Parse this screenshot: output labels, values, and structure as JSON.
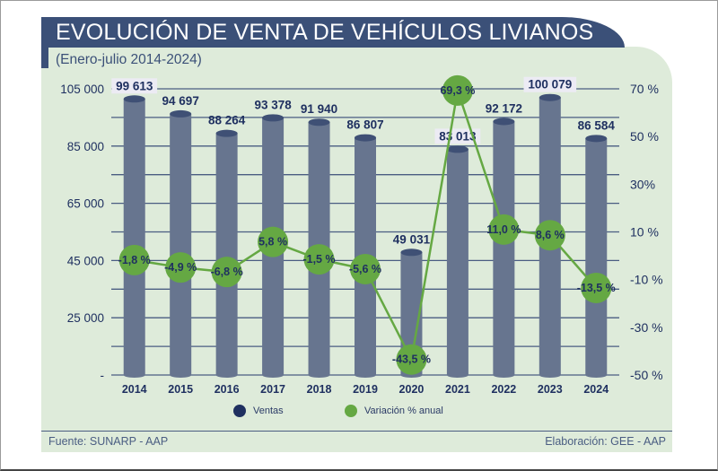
{
  "header": {
    "title": "EVOLUCIÓN DE VENTA DE VEHÍCULOS LIVIANOS",
    "subtitle": "(Enero-julio 2014-2024)"
  },
  "footer": {
    "source": "Fuente: SUNARP - AAP",
    "elaboration": "Elaboración: GEE - AAP"
  },
  "legend": [
    {
      "label": "Ventas",
      "color": "#1f3060"
    },
    {
      "label": "Variación % anual",
      "color": "#65a843"
    }
  ],
  "colors": {
    "bar": "#67758f",
    "bar_top": "#3f5075",
    "line": "#65a843",
    "grid": "#4a5d82",
    "text": "#1f3060",
    "panel": "#deebda",
    "header": "#3b5078"
  },
  "chart_data": {
    "type": "bar",
    "title": "EVOLUCIÓN DE VENTA DE VEHÍCULOS LIVIANOS",
    "subtitle": "(Enero-julio 2014-2024)",
    "categories": [
      "2014",
      "2015",
      "2016",
      "2017",
      "2018",
      "2019",
      "2020",
      "2021",
      "2022",
      "2023",
      "2024"
    ],
    "series": [
      {
        "name": "Ventas",
        "type": "bar",
        "axis": "left",
        "values": [
          99613,
          94697,
          88264,
          93378,
          91940,
          86807,
          49031,
          83013,
          92172,
          100079,
          86584
        ],
        "labels": [
          "99 613",
          "94 697",
          "88 264",
          "93 378",
          "91 940",
          "86 807",
          "49 031",
          "83 013",
          "92 172",
          "100 079",
          "86 584"
        ]
      },
      {
        "name": "Variación % anual",
        "type": "line",
        "axis": "right",
        "values": [
          -1.8,
          -4.9,
          -6.8,
          5.8,
          -1.5,
          -5.6,
          -43.5,
          69.3,
          11.0,
          8.6,
          -13.5
        ],
        "labels": [
          "-1,8 %",
          "-4,9 %",
          "-6,8 %",
          "5,8 %",
          "-1,5 %",
          "-5,6 %",
          "-43,5 %",
          "69,3 %",
          "11,0 %",
          "8,6 %",
          "-13,5 %"
        ]
      }
    ],
    "left_axis": {
      "ticks": [
        "105 000",
        "85 000",
        "65 000",
        "45 000",
        "25 000",
        "-"
      ]
    },
    "right_axis": {
      "ticks": [
        "70 %",
        "50 %",
        "30%",
        "10 %",
        "-10 %",
        "-30 %",
        "-50 %"
      ],
      "ylim": [
        -50,
        70
      ]
    },
    "grid": true,
    "legend_position": "bottom-center"
  }
}
